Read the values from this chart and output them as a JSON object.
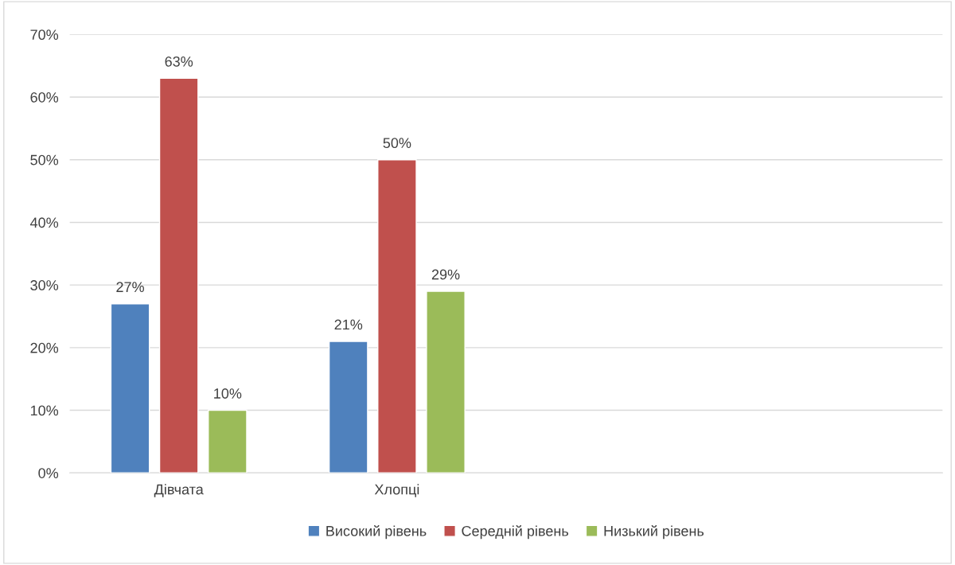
{
  "chart_data": {
    "type": "bar",
    "categories": [
      "Дівчата",
      "Хлопці",
      null,
      null
    ],
    "series": [
      {
        "name": "Високий рівень",
        "color": "#4f81bd",
        "values": [
          27,
          21,
          null,
          null
        ],
        "value_labels": [
          "27%",
          "21%",
          null,
          null
        ]
      },
      {
        "name": "Середній рівень",
        "color": "#c0504d",
        "values": [
          63,
          50,
          null,
          null
        ],
        "value_labels": [
          "63%",
          "50%",
          null,
          null
        ]
      },
      {
        "name": "Низький рівень",
        "color": "#9bbb59",
        "values": [
          10,
          29,
          null,
          null
        ],
        "value_labels": [
          "10%",
          "29%",
          null,
          null
        ]
      }
    ],
    "ylim": [
      0,
      70
    ],
    "yticks": [
      {
        "value": 0,
        "label": "0%"
      },
      {
        "value": 10,
        "label": "10%"
      },
      {
        "value": 20,
        "label": "20%"
      },
      {
        "value": 30,
        "label": "30%"
      },
      {
        "value": 40,
        "label": "40%"
      },
      {
        "value": 50,
        "label": "50%"
      },
      {
        "value": 60,
        "label": "60%"
      },
      {
        "value": 70,
        "label": "70%"
      }
    ],
    "grid": "y",
    "legend": "bottom"
  }
}
